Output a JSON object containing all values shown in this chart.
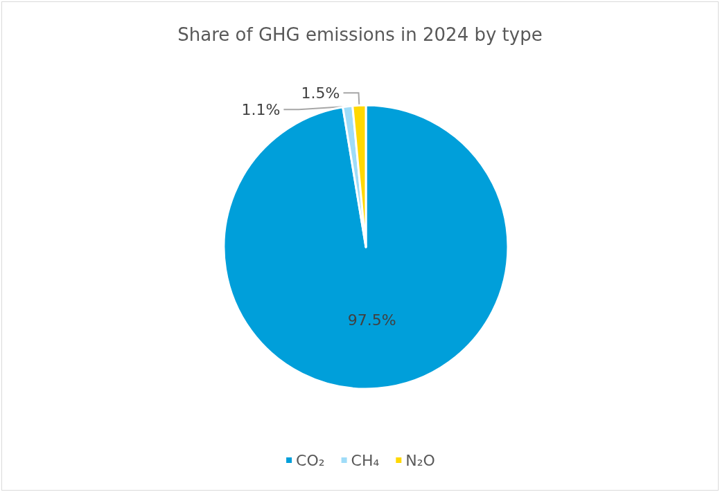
{
  "chart_data": {
    "type": "pie",
    "title": "Share of GHG emissions in 2024 by type",
    "categories": [
      "CO₂",
      "CH₄",
      "N₂O"
    ],
    "values": [
      97.5,
      1.1,
      1.5
    ],
    "colors": [
      "#009fda",
      "#9fdcf8",
      "#ffd800"
    ],
    "value_labels": [
      "97.5%",
      "1.1%",
      "1.5%"
    ],
    "legend": "bottom"
  }
}
